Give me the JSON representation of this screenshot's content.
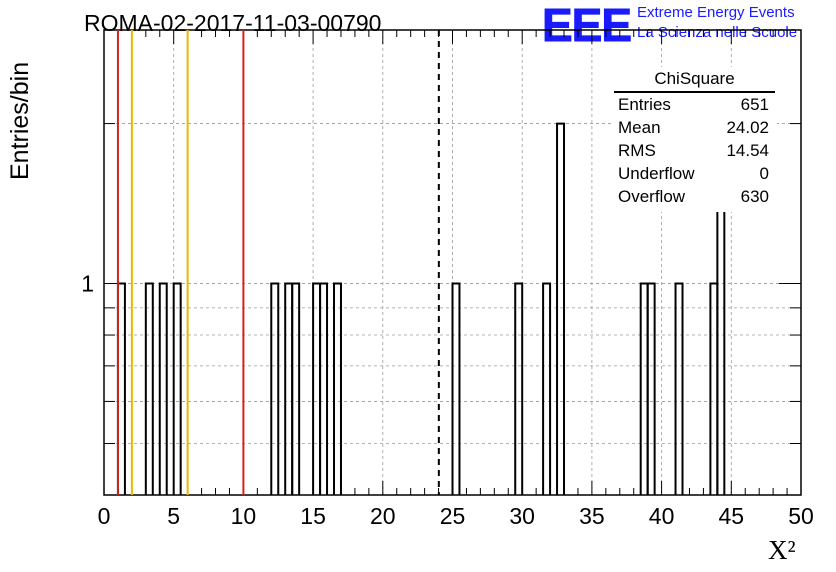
{
  "title": "ROMA-02-2017-11-03-00790",
  "logo": {
    "mark": "EEE",
    "line1": "Extreme Energy Events",
    "line2": "La Scienza nelle Scuole"
  },
  "stats": {
    "name": "ChiSquare",
    "rows": [
      {
        "key": "Entries",
        "value": "651"
      },
      {
        "key": "Mean",
        "value": "24.02"
      },
      {
        "key": "RMS",
        "value": "14.54"
      },
      {
        "key": "Underflow",
        "value": "0"
      },
      {
        "key": "Overflow",
        "value": "630"
      }
    ]
  },
  "chart_data": {
    "type": "bar",
    "style": "step-histogram",
    "title": "ROMA-02-2017-11-03-00790",
    "xlabel": "X²",
    "ylabel": "Entries/bin",
    "xlim": [
      0,
      50
    ],
    "ylim": [
      0.4,
      3
    ],
    "yscale": "log",
    "grid": true,
    "x_ticks": [
      "0",
      "5",
      "10",
      "15",
      "20",
      "25",
      "30",
      "35",
      "40",
      "45",
      "50"
    ],
    "y_tick_labels": [
      {
        "value": 1,
        "label": "1"
      }
    ],
    "bin_width": 0.5,
    "bins": [
      {
        "x": 1.0,
        "count": 1
      },
      {
        "x": 3.0,
        "count": 1
      },
      {
        "x": 4.0,
        "count": 1
      },
      {
        "x": 5.0,
        "count": 1
      },
      {
        "x": 12.0,
        "count": 1
      },
      {
        "x": 13.0,
        "count": 1
      },
      {
        "x": 13.5,
        "count": 1
      },
      {
        "x": 15.0,
        "count": 1
      },
      {
        "x": 15.5,
        "count": 1
      },
      {
        "x": 16.5,
        "count": 1
      },
      {
        "x": 25.0,
        "count": 1
      },
      {
        "x": 29.5,
        "count": 1
      },
      {
        "x": 31.5,
        "count": 1
      },
      {
        "x": 32.5,
        "count": 2
      },
      {
        "x": 38.5,
        "count": 1
      },
      {
        "x": 39.0,
        "count": 1
      },
      {
        "x": 41.0,
        "count": 1
      },
      {
        "x": 43.5,
        "count": 1
      },
      {
        "x": 44.0,
        "count": 2
      }
    ],
    "vertical_lines": [
      {
        "x": 1.0,
        "color": "#d62020",
        "style": "solid"
      },
      {
        "x": 2.0,
        "color": "#e8b800",
        "style": "solid"
      },
      {
        "x": 6.0,
        "color": "#e8b800",
        "style": "solid"
      },
      {
        "x": 10.0,
        "color": "#d62020",
        "style": "solid"
      },
      {
        "x": 24.02,
        "color": "#000000",
        "style": "dashed"
      }
    ]
  }
}
